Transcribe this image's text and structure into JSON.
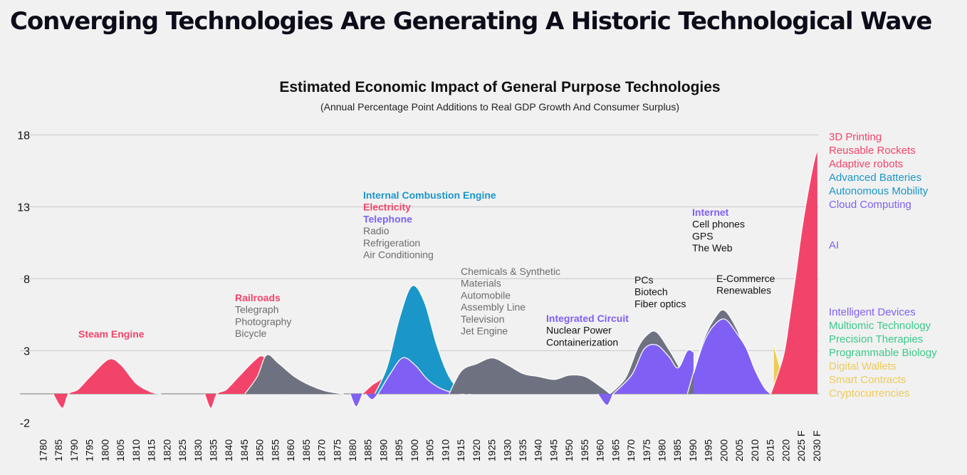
{
  "page_title": "Converging Technologies Are Generating A Historic Technological Wave",
  "chart_data": {
    "type": "area",
    "title": "Estimated Economic Impact of General Purpose Technologies",
    "subtitle": "(Annual Percentage Point Additions to Real GDP Growth And Consumer Surplus)",
    "ylim": [
      -2,
      18
    ],
    "yticks": [
      18,
      13,
      8,
      3,
      -2
    ],
    "x_ticks": [
      "1780",
      "1785",
      "1790",
      "1795",
      "1800",
      "1805",
      "1810",
      "1815",
      "1820",
      "1825",
      "1830",
      "1835",
      "1840",
      "1845",
      "1850",
      "1855",
      "1860",
      "1865",
      "1870",
      "1875",
      "1880",
      "1885",
      "1890",
      "1895",
      "1900",
      "1905",
      "1910",
      "1915",
      "1920",
      "1925",
      "1930",
      "1935",
      "1940",
      "1945",
      "1950",
      "1955",
      "1960",
      "1965",
      "1970",
      "1975",
      "1980",
      "1985",
      "1990",
      "1995",
      "2000",
      "2005",
      "2010",
      "2015",
      "2020",
      "2025 F",
      "2030 F"
    ],
    "grid": true,
    "colors": {
      "red": "#f2446a",
      "blue": "#1b96c8",
      "purple": "#8060f4",
      "gray": "#6e7180",
      "green": "#3dc98a",
      "yellow": "#efcb57",
      "black": "#121212",
      "mid_gray": "#6c6c6c"
    },
    "series": [
      {
        "name": "Steam Engine",
        "color": "red",
        "x": [
          1783,
          1786,
          1788,
          1791,
          1795,
          1801,
          1805,
          1810,
          1815,
          1818
        ],
        "values": [
          0,
          -1,
          0,
          0.3,
          1.2,
          2.4,
          2.0,
          0.7,
          0.1,
          0
        ]
      },
      {
        "name": "Steam Engine",
        "color": "red",
        "x": [
          1832,
          1834,
          1836,
          1839,
          1843,
          1848,
          1851,
          1855,
          1858
        ],
        "values": [
          0,
          -1,
          0,
          0.3,
          1.2,
          2.3,
          2.6,
          1.4,
          0
        ]
      },
      {
        "name": "Railroads",
        "color": "gray",
        "x": [
          1845,
          1849,
          1852,
          1856,
          1861,
          1866,
          1871,
          1875,
          1877
        ],
        "values": [
          0,
          1.2,
          2.7,
          2.1,
          1.2,
          0.6,
          0.2,
          0.05,
          0
        ]
      },
      {
        "name": "Railroads",
        "color": "purple",
        "x": [
          1879,
          1881,
          1883
        ],
        "values": [
          0,
          -0.9,
          0
        ]
      },
      {
        "name": "Electricity",
        "color": "red",
        "x": [
          1883,
          1886,
          1890,
          1894,
          1898,
          1902,
          1906,
          1910,
          1915,
          1918
        ],
        "values": [
          0,
          0.6,
          1.3,
          3.3,
          5.1,
          4.6,
          2.8,
          1.3,
          0.3,
          0
        ]
      },
      {
        "name": "Internal Combustion Engine",
        "color": "blue",
        "x": [
          1887,
          1891,
          1895,
          1899,
          1903,
          1907,
          1911,
          1915,
          1918
        ],
        "values": [
          0,
          1.9,
          5.3,
          7.5,
          6.4,
          3.4,
          1.2,
          0.2,
          0
        ]
      },
      {
        "name": "Telephone",
        "color": "purple",
        "x": [
          1884,
          1886,
          1888,
          1892,
          1896,
          1900,
          1904,
          1908,
          1912,
          1916
        ],
        "values": [
          0,
          -0.4,
          0,
          1.4,
          2.5,
          2.0,
          1.0,
          0.4,
          0.1,
          0
        ]
      },
      {
        "name": "Chemicals & Synthetic Materials",
        "color": "gray",
        "x": [
          1911,
          1915,
          1920,
          1925,
          1930,
          1935,
          1940,
          1945,
          1950,
          1955,
          1960,
          1963
        ],
        "values": [
          0,
          1.6,
          2.1,
          2.5,
          2.0,
          1.4,
          1.2,
          1.0,
          1.3,
          1.2,
          0.5,
          0
        ]
      },
      {
        "name": "Integrated Circuit",
        "color": "purple",
        "x": [
          1959,
          1962,
          1964
        ],
        "values": [
          0,
          -0.8,
          0
        ]
      },
      {
        "name": "PCs",
        "color": "gray",
        "x": [
          1963,
          1968,
          1972,
          1975,
          1978,
          1982,
          1986,
          1990
        ],
        "values": [
          0,
          1.1,
          3.2,
          4.1,
          4.3,
          3.1,
          1.6,
          0
        ]
      },
      {
        "name": "PCs",
        "color": "purple",
        "x": [
          1964,
          1970,
          1974,
          1978,
          1982,
          1985,
          1988,
          1990
        ],
        "values": [
          0,
          1.3,
          3.1,
          3.4,
          2.6,
          1.8,
          3.0,
          2.9
        ]
      },
      {
        "name": "Internet",
        "color": "gray",
        "x": [
          1988,
          1993,
          1997,
          2000,
          2004,
          2007,
          2010,
          2013
        ],
        "values": [
          0,
          3.6,
          5.3,
          5.8,
          4.5,
          2.8,
          1.3,
          0
        ]
      },
      {
        "name": "Internet",
        "color": "purple",
        "x": [
          1990,
          1993,
          1996,
          2000,
          2004,
          2007,
          2010,
          2013,
          2015
        ],
        "values": [
          1.4,
          3.4,
          4.6,
          5.2,
          4.2,
          3.2,
          1.6,
          0.4,
          0
        ]
      },
      {
        "name": "Cryptocurrencies",
        "color": "yellow",
        "x": [
          2016,
          2019,
          2021,
          2023,
          2025,
          2027,
          2029,
          2030
        ],
        "values": [
          3.4,
          1.3,
          2.7,
          3.0,
          3.3,
          3.6,
          3.6,
          3.6
        ]
      },
      {
        "name": "AI",
        "color": "purple",
        "x": [
          2016,
          2019,
          2021,
          2023,
          2025,
          2027,
          2029,
          2030
        ],
        "values": [
          0.5,
          2.0,
          4.0,
          6.6,
          9.4,
          11.6,
          13.0,
          13.3
        ]
      },
      {
        "name": "Autonomous Mobility",
        "color": "blue",
        "x": [
          2016,
          2019,
          2021,
          2023,
          2025,
          2027,
          2029,
          2030
        ],
        "values": [
          0,
          2.3,
          4.6,
          7.4,
          10.4,
          12.8,
          14.6,
          15.1
        ]
      },
      {
        "name": "Reusable Rockets",
        "color": "red",
        "x": [
          2015,
          2019,
          2021,
          2023,
          2025,
          2027,
          2029,
          2030
        ],
        "values": [
          0,
          2.6,
          5.2,
          8.2,
          11.4,
          14.0,
          16.2,
          16.9
        ]
      }
    ],
    "annotations": [
      {
        "key": "steam",
        "lines": [
          {
            "text": "Steam Engine",
            "color": "red",
            "bold": true
          }
        ]
      },
      {
        "key": "railroads",
        "lines": [
          {
            "text": "Railroads",
            "color": "red",
            "bold": true
          },
          {
            "text": "Telegraph",
            "color": "mid_gray"
          },
          {
            "text": "Photography",
            "color": "mid_gray"
          },
          {
            "text": "Bicycle",
            "color": "mid_gray"
          }
        ]
      },
      {
        "key": "ice",
        "lines": [
          {
            "text": "Internal Combustion Engine",
            "color": "blue",
            "bold": true
          },
          {
            "text": "Electricity",
            "color": "red",
            "bold": true
          },
          {
            "text": "Telephone",
            "color": "purple",
            "bold": true
          },
          {
            "text": "Radio",
            "color": "mid_gray"
          },
          {
            "text": "Refrigeration",
            "color": "mid_gray"
          },
          {
            "text": "Air Conditioning",
            "color": "mid_gray"
          }
        ]
      },
      {
        "key": "chemicals",
        "lines": [
          {
            "text": "Chemicals & Synthetic",
            "color": "mid_gray"
          },
          {
            "text": "Materials",
            "color": "mid_gray"
          },
          {
            "text": "Automobile",
            "color": "mid_gray"
          },
          {
            "text": "Assembly Line",
            "color": "mid_gray"
          },
          {
            "text": "Television",
            "color": "mid_gray"
          },
          {
            "text": "Jet Engine",
            "color": "mid_gray"
          }
        ]
      },
      {
        "key": "ic",
        "lines": [
          {
            "text": "Integrated Circuit",
            "color": "purple",
            "bold": true
          },
          {
            "text": "Nuclear Power",
            "color": "black"
          },
          {
            "text": "Containerization",
            "color": "black"
          }
        ]
      },
      {
        "key": "pcs",
        "lines": [
          {
            "text": "PCs",
            "color": "black"
          },
          {
            "text": "Biotech",
            "color": "black"
          },
          {
            "text": "Fiber optics",
            "color": "black"
          }
        ]
      },
      {
        "key": "internet",
        "lines": [
          {
            "text": "Internet",
            "color": "purple",
            "bold": true
          },
          {
            "text": "Cell phones",
            "color": "black"
          },
          {
            "text": "GPS",
            "color": "black"
          },
          {
            "text": "The Web",
            "color": "black"
          }
        ]
      },
      {
        "key": "ecommerce",
        "lines": [
          {
            "text": "E-Commerce",
            "color": "black"
          },
          {
            "text": "Renewables",
            "color": "black"
          }
        ]
      }
    ],
    "legend": [
      {
        "text": "3D Printing",
        "color": "red"
      },
      {
        "text": "Reusable Rockets",
        "color": "red"
      },
      {
        "text": "Adaptive robots",
        "color": "red"
      },
      {
        "text": "Advanced Batteries",
        "color": "blue"
      },
      {
        "text": "Autonomous Mobility",
        "color": "blue"
      },
      {
        "text": "Cloud Computing",
        "color": "purple"
      },
      {
        "text": "AI",
        "color": "purple"
      },
      {
        "text": "Intelligent Devices",
        "color": "purple"
      },
      {
        "text": "Multiomic Technology",
        "color": "green"
      },
      {
        "text": "Precision Therapies",
        "color": "green"
      },
      {
        "text": "Programmable Biology",
        "color": "green"
      },
      {
        "text": "Digital Wallets",
        "color": "yellow"
      },
      {
        "text": "Smart Contracts",
        "color": "yellow"
      },
      {
        "text": "Cryptocurrencies",
        "color": "yellow"
      }
    ]
  }
}
